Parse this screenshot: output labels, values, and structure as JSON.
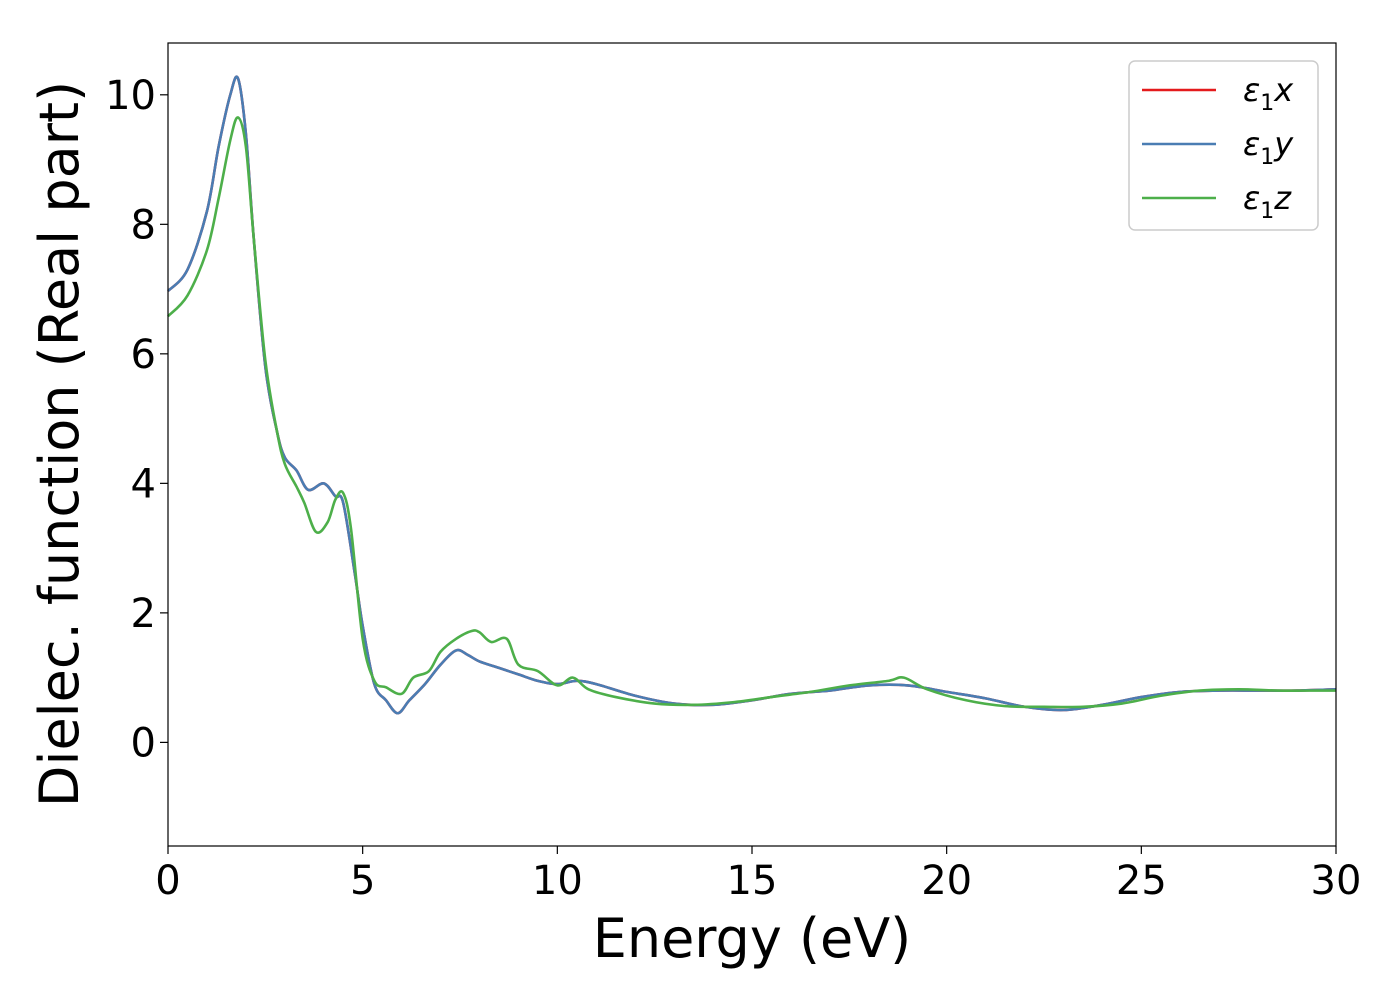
{
  "chart_data": {
    "type": "line",
    "xlabel": "Energy (eV)",
    "ylabel": "Dielec. function (Real part)",
    "xlim": [
      0,
      30
    ],
    "ylim": [
      -1.6,
      10.8
    ],
    "xticks": [
      0,
      5,
      10,
      15,
      20,
      25,
      30
    ],
    "yticks": [
      0,
      2,
      4,
      6,
      8,
      10
    ],
    "grid": false,
    "legend_position": "top-right",
    "series": [
      {
        "name": "ε1x",
        "legend_main": "ε",
        "legend_sub": "1",
        "legend_suffix": "x",
        "color": "#e41a1c",
        "x": [
          0,
          0.5,
          1.0,
          1.3,
          1.6,
          1.8,
          2.0,
          2.2,
          2.5,
          2.8,
          3.0,
          3.3,
          3.6,
          4.0,
          4.3,
          4.5,
          4.8,
          5.0,
          5.3,
          5.6,
          5.9,
          6.2,
          6.6,
          7.0,
          7.4,
          7.7,
          8.0,
          8.5,
          9.0,
          9.5,
          10.0,
          10.5,
          11.0,
          12.0,
          13.0,
          14.0,
          15.0,
          16.0,
          17.0,
          18.0,
          19.0,
          20.0,
          21.0,
          22.0,
          23.0,
          24.0,
          25.0,
          26.0,
          27.0,
          28.0,
          29.0,
          30.0
        ],
        "y": [
          6.97,
          7.3,
          8.2,
          9.2,
          10.0,
          10.25,
          9.4,
          7.8,
          5.8,
          4.8,
          4.4,
          4.2,
          3.9,
          4.0,
          3.8,
          3.7,
          2.6,
          1.8,
          0.9,
          0.65,
          0.45,
          0.65,
          0.9,
          1.2,
          1.42,
          1.35,
          1.25,
          1.15,
          1.05,
          0.95,
          0.9,
          0.95,
          0.9,
          0.72,
          0.6,
          0.58,
          0.65,
          0.75,
          0.8,
          0.88,
          0.88,
          0.78,
          0.68,
          0.55,
          0.5,
          0.58,
          0.7,
          0.78,
          0.8,
          0.8,
          0.8,
          0.82
        ]
      },
      {
        "name": "ε1y",
        "legend_main": "ε",
        "legend_sub": "1",
        "legend_suffix": "y",
        "color": "#4a7db3",
        "x": [
          0,
          0.5,
          1.0,
          1.3,
          1.6,
          1.8,
          2.0,
          2.2,
          2.5,
          2.8,
          3.0,
          3.3,
          3.6,
          4.0,
          4.3,
          4.5,
          4.8,
          5.0,
          5.3,
          5.6,
          5.9,
          6.2,
          6.6,
          7.0,
          7.4,
          7.7,
          8.0,
          8.5,
          9.0,
          9.5,
          10.0,
          10.5,
          11.0,
          12.0,
          13.0,
          14.0,
          15.0,
          16.0,
          17.0,
          18.0,
          19.0,
          20.0,
          21.0,
          22.0,
          23.0,
          24.0,
          25.0,
          26.0,
          27.0,
          28.0,
          29.0,
          30.0
        ],
        "y": [
          6.97,
          7.3,
          8.2,
          9.2,
          10.0,
          10.25,
          9.4,
          7.8,
          5.8,
          4.8,
          4.4,
          4.2,
          3.9,
          4.0,
          3.8,
          3.7,
          2.6,
          1.8,
          0.9,
          0.65,
          0.45,
          0.65,
          0.9,
          1.2,
          1.42,
          1.35,
          1.25,
          1.15,
          1.05,
          0.95,
          0.9,
          0.95,
          0.9,
          0.72,
          0.6,
          0.58,
          0.65,
          0.75,
          0.8,
          0.88,
          0.88,
          0.78,
          0.68,
          0.55,
          0.5,
          0.58,
          0.7,
          0.78,
          0.8,
          0.8,
          0.8,
          0.82
        ]
      },
      {
        "name": "ε1z",
        "legend_main": "ε",
        "legend_sub": "1",
        "legend_suffix": "z",
        "color": "#4daf4a",
        "x": [
          0,
          0.5,
          1.0,
          1.3,
          1.6,
          1.8,
          2.0,
          2.2,
          2.5,
          2.8,
          3.0,
          3.3,
          3.5,
          3.8,
          4.1,
          4.3,
          4.5,
          4.7,
          5.0,
          5.3,
          5.6,
          6.0,
          6.3,
          6.7,
          7.0,
          7.4,
          7.8,
          8.0,
          8.3,
          8.7,
          9.0,
          9.5,
          10.0,
          10.4,
          10.8,
          11.5,
          12.5,
          13.5,
          14.5,
          15.5,
          16.5,
          17.5,
          18.5,
          18.9,
          19.5,
          20.5,
          21.5,
          22.5,
          23.5,
          24.5,
          25.5,
          26.5,
          27.5,
          28.5,
          29.5,
          30.0
        ],
        "y": [
          6.58,
          6.9,
          7.6,
          8.4,
          9.3,
          9.65,
          9.2,
          7.8,
          5.9,
          4.8,
          4.3,
          3.95,
          3.7,
          3.25,
          3.4,
          3.75,
          3.85,
          3.3,
          1.6,
          0.95,
          0.85,
          0.75,
          1.0,
          1.1,
          1.4,
          1.6,
          1.72,
          1.7,
          1.55,
          1.6,
          1.2,
          1.1,
          0.88,
          1.0,
          0.82,
          0.7,
          0.6,
          0.58,
          0.62,
          0.7,
          0.78,
          0.88,
          0.95,
          1.0,
          0.82,
          0.65,
          0.56,
          0.55,
          0.55,
          0.6,
          0.72,
          0.8,
          0.82,
          0.8,
          0.8,
          0.8
        ]
      }
    ]
  }
}
